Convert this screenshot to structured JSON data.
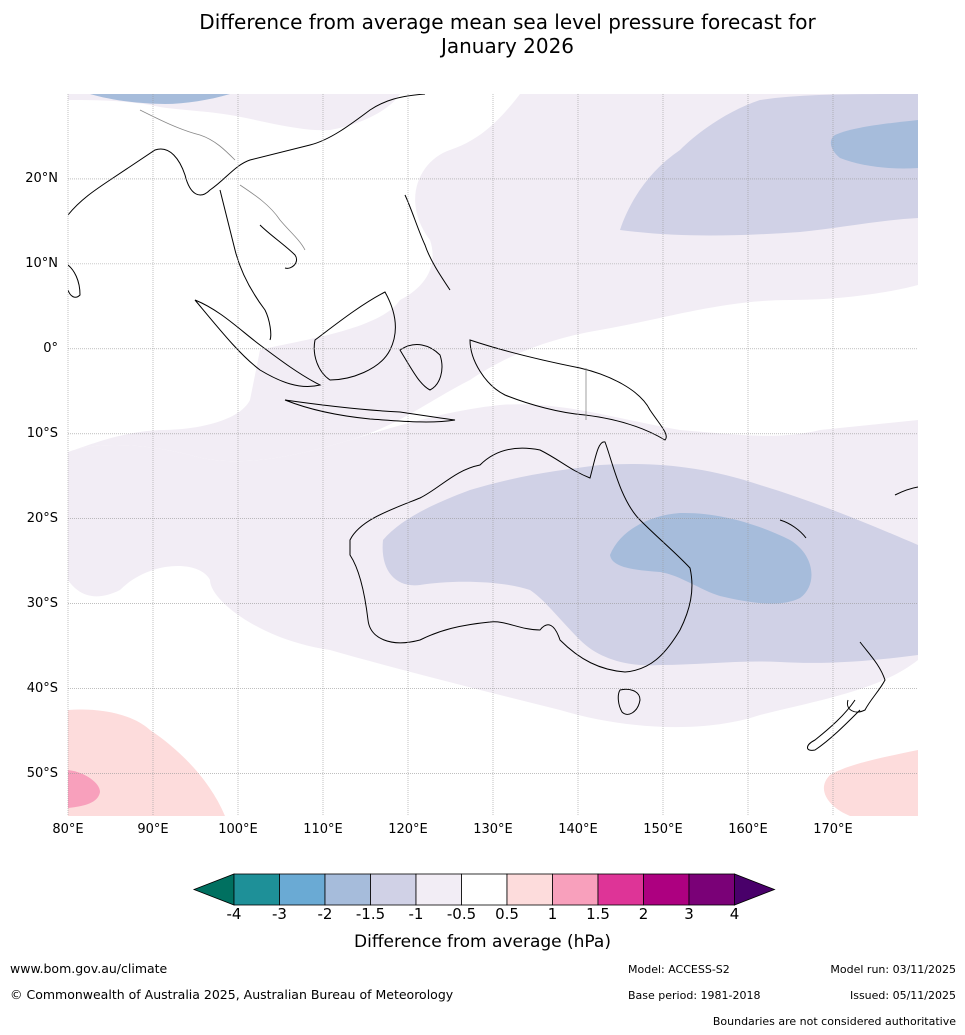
{
  "title": {
    "line1": "Difference from average mean sea level pressure forecast for",
    "line2": "January 2026"
  },
  "map": {
    "lat_labels": [
      "20°N",
      "10°N",
      "0°",
      "10°S",
      "20°S",
      "30°S",
      "40°S",
      "50°S"
    ],
    "lon_labels": [
      "80°E",
      "90°E",
      "100°E",
      "110°E",
      "120°E",
      "130°E",
      "140°E",
      "150°E",
      "160°E",
      "170°E"
    ],
    "extent": {
      "lon_min": 80,
      "lon_max": 180,
      "lat_min": -55,
      "lat_max": 30
    }
  },
  "legend": {
    "title": "Difference from average (hPa)",
    "ticks": [
      "-4",
      "-3",
      "-2",
      "-1.5",
      "-1",
      "-0.5",
      "0.5",
      "1",
      "1.5",
      "2",
      "3",
      "4"
    ],
    "colors": [
      "#007060",
      "#1e9098",
      "#6aaad4",
      "#a6bcdb",
      "#d0d1e6",
      "#f2edf5",
      "#ffffff",
      "#fddcdc",
      "#f8a0bc",
      "#de3497",
      "#ad0080",
      "#7a0177",
      "#49006a"
    ]
  },
  "footer": {
    "website": "www.bom.gov.au/climate",
    "copyright": "© Commonwealth of Australia 2025, Australian Bureau of Meteorology",
    "model": "Model: ACCESS-S2",
    "base_period": "Base period: 1981-2018",
    "model_run": "Model run: 03/11/2025",
    "issued": "Issued: 05/11/2025",
    "disclaimer": "Boundaries are not considered authoritative"
  }
}
